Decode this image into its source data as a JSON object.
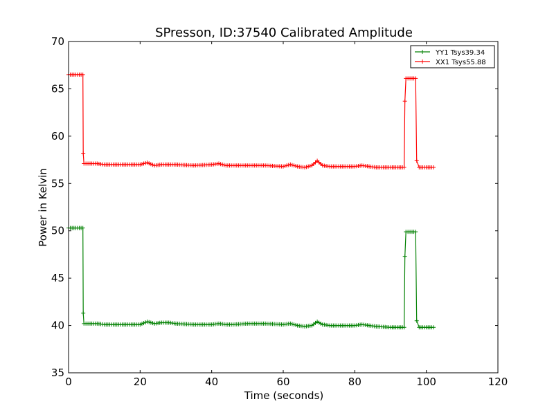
{
  "chart_data": {
    "type": "line",
    "title": "SPresson, ID:37540 Calibrated Amplitude",
    "xlabel": "Time (seconds)",
    "ylabel": "Power in Kelvin",
    "xlim": [
      0,
      120
    ],
    "ylim": [
      35,
      70
    ],
    "xticks": [
      0,
      20,
      40,
      60,
      80,
      100,
      120
    ],
    "yticks": [
      35,
      40,
      45,
      50,
      55,
      60,
      65,
      70
    ],
    "grid": false,
    "legend_position": "top-right",
    "marker": "+",
    "series": [
      {
        "name": "YY1 Tsys39.34",
        "color": "#008000",
        "x": [
          0,
          2,
          4,
          4.1,
          4.3,
          6,
          8,
          10,
          15,
          20,
          22,
          24,
          26,
          28,
          30,
          35,
          40,
          42,
          44,
          46,
          50,
          55,
          60,
          62,
          64,
          66,
          68,
          69.5,
          71,
          73,
          75,
          80,
          82,
          84,
          86,
          90,
          93.8,
          94,
          94.3,
          96,
          97,
          97.3,
          98,
          100,
          102
        ],
        "y": [
          50.3,
          50.3,
          50.3,
          41.3,
          40.2,
          40.2,
          40.2,
          40.1,
          40.1,
          40.1,
          40.4,
          40.2,
          40.3,
          40.3,
          40.2,
          40.1,
          40.1,
          40.2,
          40.1,
          40.1,
          40.2,
          40.2,
          40.1,
          40.2,
          40.0,
          39.9,
          40.0,
          40.4,
          40.1,
          40.0,
          40.0,
          40.0,
          40.1,
          40.0,
          39.9,
          39.8,
          39.8,
          47.3,
          49.9,
          49.9,
          49.9,
          40.5,
          39.8,
          39.8,
          39.8
        ]
      },
      {
        "name": "XX1 Tsys55.88",
        "color": "#ff0000",
        "x": [
          0,
          2,
          4,
          4.1,
          4.3,
          6,
          8,
          10,
          15,
          20,
          22,
          24,
          26,
          28,
          30,
          35,
          40,
          42,
          44,
          46,
          50,
          55,
          60,
          62,
          64,
          66,
          68,
          69.5,
          71,
          73,
          75,
          80,
          82,
          84,
          86,
          90,
          93.8,
          94,
          94.3,
          96,
          97,
          97.3,
          98,
          100,
          102
        ],
        "y": [
          66.5,
          66.5,
          66.5,
          58.2,
          57.1,
          57.1,
          57.1,
          57.0,
          57.0,
          57.0,
          57.2,
          56.9,
          57.0,
          57.0,
          57.0,
          56.9,
          57.0,
          57.1,
          56.9,
          56.9,
          56.9,
          56.9,
          56.8,
          57.0,
          56.8,
          56.7,
          56.9,
          57.4,
          56.9,
          56.8,
          56.8,
          56.8,
          56.9,
          56.8,
          56.7,
          56.7,
          56.7,
          63.7,
          66.1,
          66.1,
          66.1,
          57.4,
          56.7,
          56.7,
          56.7
        ]
      }
    ]
  }
}
